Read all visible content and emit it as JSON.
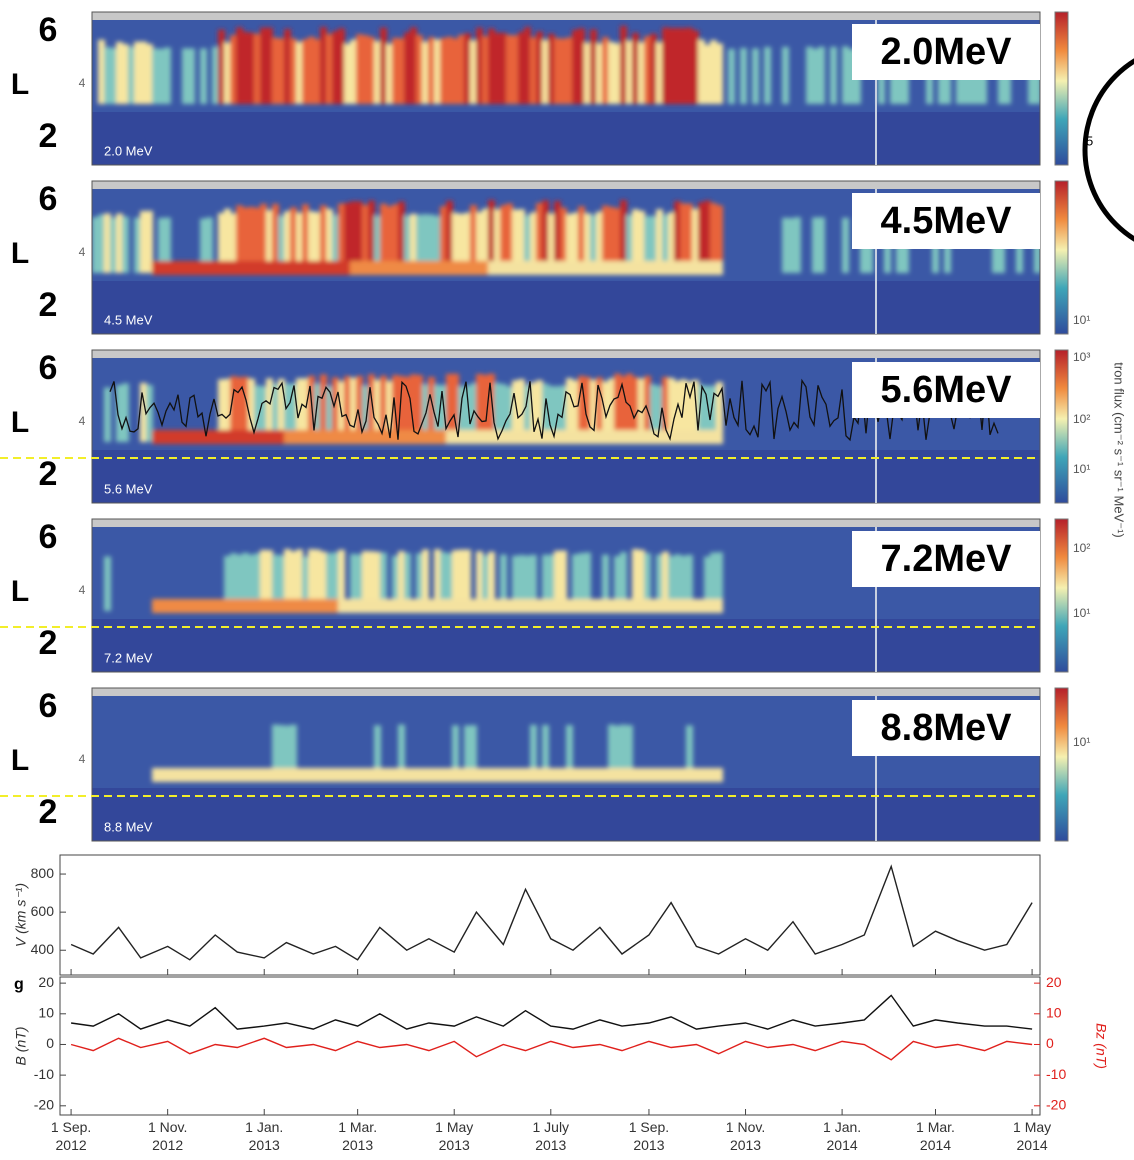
{
  "spectrograms": [
    {
      "label": "2.0MeV",
      "energy_label": "2.0 MeV",
      "upper": "6",
      "axis": "L",
      "lower": "2",
      "tick": "4"
    },
    {
      "label": "4.5MeV",
      "energy_label": "4.5 MeV",
      "upper": "6",
      "axis": "L",
      "lower": "2",
      "tick": "4",
      "colorbar_ticks": [
        "10¹"
      ]
    },
    {
      "label": "5.6MeV",
      "energy_label": "5.6 MeV",
      "upper": "6",
      "axis": "L",
      "lower": "2",
      "tick": "4",
      "colorbar_ticks": [
        "10³",
        "10²",
        "10¹"
      ]
    },
    {
      "label": "7.2MeV",
      "energy_label": "7.2 MeV",
      "upper": "6",
      "axis": "L",
      "lower": "2",
      "tick": "4",
      "colorbar_ticks": [
        "10²",
        "10¹"
      ]
    },
    {
      "label": "8.8MeV",
      "energy_label": "8.8 MeV",
      "upper": "6",
      "axis": "L",
      "lower": "2",
      "tick": "4",
      "colorbar_ticks": [
        "10¹"
      ]
    }
  ],
  "colorbar_label": "tron flux (cm⁻² s⁻¹ sr⁻¹ MeV⁻¹)",
  "inset_label": "5",
  "chart_data": [
    {
      "type": "line",
      "y_label": "V (km s⁻¹)",
      "color": "#222222",
      "x": [
        "2012-09-01",
        "2012-09-15",
        "2012-10-01",
        "2012-10-15",
        "2012-11-01",
        "2012-11-15",
        "2012-12-01",
        "2012-12-15",
        "2013-01-01",
        "2013-01-15",
        "2013-02-01",
        "2013-02-15",
        "2013-03-01",
        "2013-03-15",
        "2013-04-01",
        "2013-04-15",
        "2013-05-01",
        "2013-05-15",
        "2013-06-01",
        "2013-06-15",
        "2013-07-01",
        "2013-07-15",
        "2013-08-01",
        "2013-08-15",
        "2013-09-01",
        "2013-09-15",
        "2013-10-01",
        "2013-10-15",
        "2013-11-01",
        "2013-11-15",
        "2013-12-01",
        "2013-12-15",
        "2014-01-01",
        "2014-01-15",
        "2014-02-01",
        "2014-02-15",
        "2014-03-01",
        "2014-03-15",
        "2014-04-01",
        "2014-04-15",
        "2014-05-01"
      ],
      "values": [
        430,
        380,
        520,
        360,
        420,
        350,
        480,
        390,
        360,
        440,
        380,
        420,
        350,
        520,
        400,
        460,
        390,
        600,
        430,
        720,
        460,
        400,
        520,
        380,
        480,
        650,
        420,
        380,
        460,
        400,
        550,
        380,
        430,
        480,
        840,
        420,
        500,
        450,
        400,
        430,
        650
      ],
      "xlim": [
        "2012-08-25",
        "2014-05-06"
      ],
      "ylim": [
        270,
        900
      ],
      "yticks": [
        400,
        600,
        800
      ]
    },
    {
      "type": "line",
      "panel_label": "g",
      "y_label": "B (nT)",
      "y2_label": "Bz (nT)",
      "x": [
        "2012-09-01",
        "2012-09-15",
        "2012-10-01",
        "2012-10-15",
        "2012-11-01",
        "2012-11-15",
        "2012-12-01",
        "2012-12-15",
        "2013-01-01",
        "2013-01-15",
        "2013-02-01",
        "2013-02-15",
        "2013-03-01",
        "2013-03-15",
        "2013-04-01",
        "2013-04-15",
        "2013-05-01",
        "2013-05-15",
        "2013-06-01",
        "2013-06-15",
        "2013-07-01",
        "2013-07-15",
        "2013-08-01",
        "2013-08-15",
        "2013-09-01",
        "2013-09-15",
        "2013-10-01",
        "2013-10-15",
        "2013-11-01",
        "2013-11-15",
        "2013-12-01",
        "2013-12-15",
        "2014-01-01",
        "2014-01-15",
        "2014-02-01",
        "2014-02-15",
        "2014-03-01",
        "2014-03-15",
        "2014-04-01",
        "2014-04-15",
        "2014-05-01"
      ],
      "series": [
        {
          "color": "#111111",
          "values": [
            7,
            6,
            10,
            5,
            8,
            6,
            12,
            5,
            6,
            7,
            5,
            8,
            6,
            10,
            5,
            7,
            6,
            9,
            6,
            11,
            6,
            5,
            8,
            6,
            7,
            9,
            5,
            6,
            7,
            5,
            8,
            6,
            7,
            8,
            16,
            6,
            8,
            7,
            6,
            6,
            5
          ]
        },
        {
          "color": "#e0201c",
          "axis": "y2",
          "values": [
            0,
            -2,
            2,
            -1,
            1,
            -3,
            0,
            -1,
            2,
            -1,
            0,
            -2,
            1,
            -1,
            0,
            -2,
            1,
            -4,
            0,
            -2,
            1,
            -1,
            0,
            -2,
            1,
            -1,
            0,
            -3,
            1,
            -1,
            0,
            -2,
            1,
            0,
            -5,
            1,
            -1,
            0,
            -2,
            1,
            0
          ]
        }
      ],
      "xlim": [
        "2012-08-25",
        "2014-05-06"
      ],
      "ylim": [
        -23,
        22
      ],
      "yticks": [
        -20,
        -10,
        0,
        10,
        20
      ],
      "y2lim": [
        -23,
        22
      ],
      "y2ticks": [
        -20,
        -10,
        0,
        10,
        20
      ],
      "xticks": [
        {
          "value": "2012-09-01",
          "label": "1 Sep. 2012"
        },
        {
          "value": "2012-11-01",
          "label": "1 Nov. 2012"
        },
        {
          "value": "2013-01-01",
          "label": "1 Jan. 2013"
        },
        {
          "value": "2013-03-01",
          "label": "1 Mar. 2013"
        },
        {
          "value": "2013-05-01",
          "label": "1 May 2013"
        },
        {
          "value": "2013-07-01",
          "label": "1 July 2013"
        },
        {
          "value": "2013-09-01",
          "label": "1 Sep. 2013"
        },
        {
          "value": "2013-11-01",
          "label": "1 Nov. 2013"
        },
        {
          "value": "2014-01-01",
          "label": "1 Jan. 2014"
        },
        {
          "value": "2014-03-01",
          "label": "1 Mar. 2014"
        },
        {
          "value": "2014-05-01",
          "label": "1 May 2014"
        }
      ]
    }
  ]
}
